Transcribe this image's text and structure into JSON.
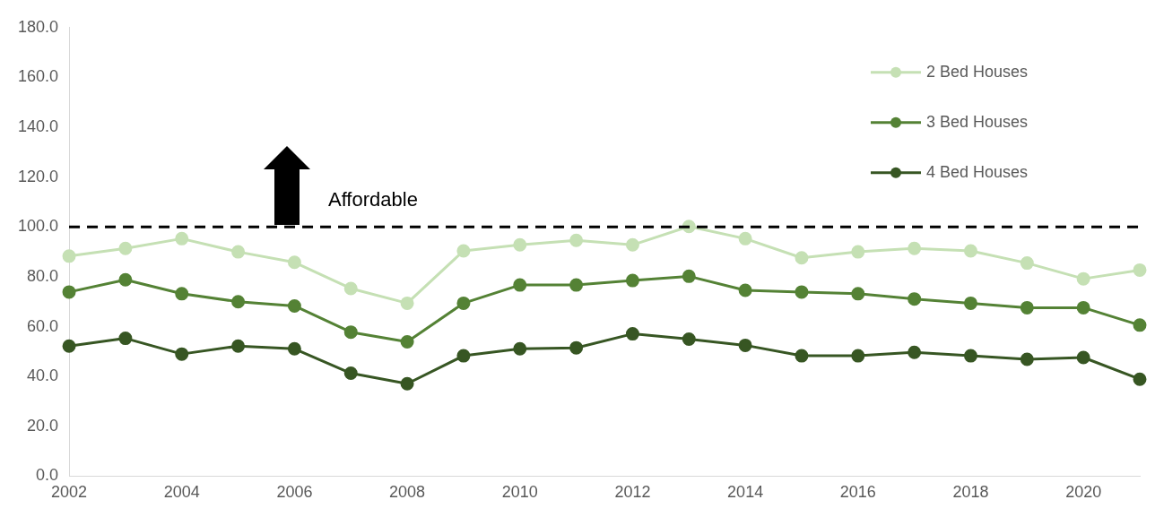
{
  "chart_data": {
    "type": "line",
    "categories": [
      "2002",
      null,
      "2004",
      null,
      "2006",
      null,
      "2008",
      null,
      "2010",
      null,
      "2012",
      null,
      "2014",
      null,
      "2016",
      null,
      "2018",
      null,
      "2020",
      null
    ],
    "series": [
      {
        "name": "2 Bed Houses",
        "color": "#c5e0b4",
        "values": [
          88.3,
          91.4,
          95.3,
          90.0,
          85.8,
          75.3,
          69.4,
          90.4,
          92.8,
          94.6,
          92.8,
          100.2,
          95.3,
          87.6,
          90.0,
          91.4,
          90.4,
          85.5,
          79.2,
          82.7
        ]
      },
      {
        "name": "3 Bed Houses",
        "color": "#548235",
        "values": [
          73.9,
          78.8,
          73.2,
          70.0,
          68.3,
          57.8,
          53.9,
          69.4,
          76.7,
          76.7,
          78.5,
          80.2,
          74.6,
          73.9,
          73.2,
          71.1,
          69.4,
          67.6,
          67.6,
          60.6
        ]
      },
      {
        "name": "4 Bed Houses",
        "color": "#375623",
        "values": [
          52.2,
          55.3,
          49.0,
          52.2,
          51.1,
          41.3,
          37.1,
          48.3,
          51.1,
          51.5,
          57.1,
          55.0,
          52.5,
          48.3,
          48.3,
          49.7,
          48.3,
          46.9,
          47.6,
          38.9
        ]
      }
    ],
    "ylim": [
      0,
      180
    ],
    "yticks": [
      {
        "value": 0,
        "label": "0.0"
      },
      {
        "value": 20,
        "label": "20.0"
      },
      {
        "value": 40,
        "label": "40.0"
      },
      {
        "value": 60,
        "label": "60.0"
      },
      {
        "value": 80,
        "label": "80.0"
      },
      {
        "value": 100,
        "label": "100.0"
      },
      {
        "value": 120,
        "label": "120.0"
      },
      {
        "value": 140,
        "label": "140.0"
      },
      {
        "value": 160,
        "label": "160.0"
      },
      {
        "value": 180,
        "label": "180.0"
      }
    ],
    "ref_lines": [
      {
        "axis": "y",
        "value": 100,
        "label": "Affordable",
        "color": "#000000",
        "line_style": "dashed"
      }
    ],
    "legend": "top right",
    "marker": "circle",
    "line_style": "solid",
    "grid": false
  }
}
